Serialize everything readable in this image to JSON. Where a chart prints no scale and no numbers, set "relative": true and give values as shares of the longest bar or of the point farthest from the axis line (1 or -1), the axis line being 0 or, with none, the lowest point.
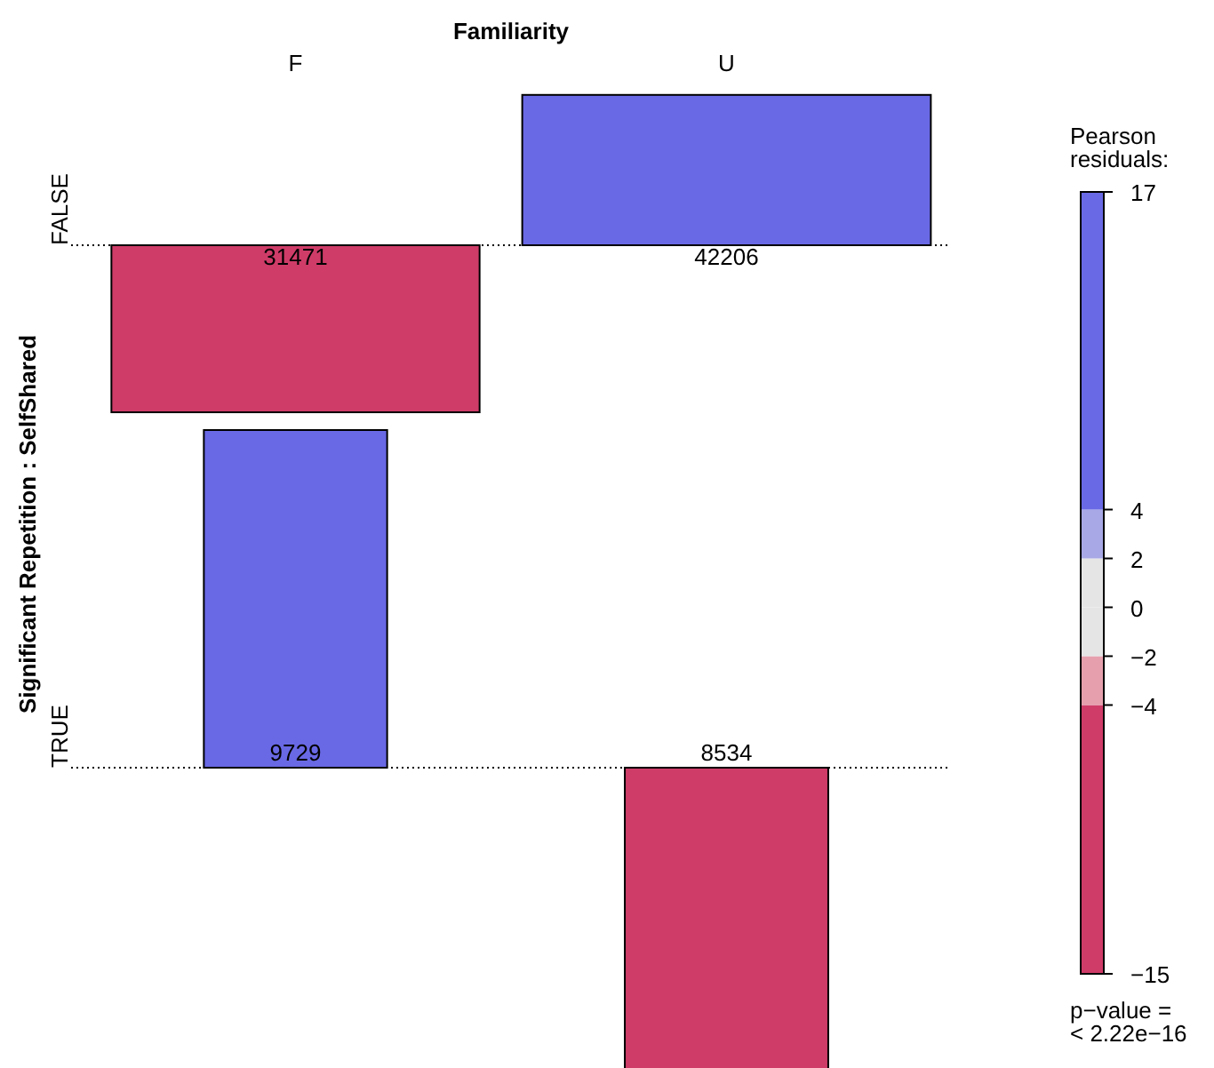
{
  "chart_data": [
    {
      "type": "bar",
      "relative": true,
      "title": "Familiarity",
      "ylabel": "FALSE",
      "categories": [
        "F",
        "U"
      ],
      "values": [
        -1,
        0.9
      ],
      "colors": [
        "#cf3c68",
        "#6969e5"
      ],
      "ref_lines": [
        {
          "axis": "y",
          "value": 0,
          "line_style": "dotted"
        }
      ],
      "clabel": "Pearson residuals:",
      "clim": [
        -15,
        17
      ],
      "cticks": [
        {
          "value": -15,
          "label": "−15"
        },
        {
          "value": -4,
          "label": "−4"
        },
        {
          "value": -2,
          "label": "−2"
        },
        0,
        2,
        4,
        17
      ],
      "annotations": [
        "Significant Repetition : SelfShared",
        "p−value =\n< 2.22e−16",
        {
          "text": "31471",
          "x": "F",
          "y": 0
        },
        {
          "text": "42206",
          "x": "U",
          "y": 0
        }
      ]
    },
    {
      "type": "bar",
      "relative": true,
      "ylabel": "TRUE",
      "tick_labels": false,
      "categories": [
        "F",
        "U"
      ],
      "values": [
        1,
        -0.9
      ],
      "colors": [
        "#6969e5",
        "#cf3c68"
      ],
      "ref_lines": [
        {
          "axis": "y",
          "value": 0,
          "line_style": "dotted"
        }
      ],
      "annotations": [
        {
          "text": "9729",
          "x": "F",
          "y": 0
        },
        {
          "text": "8534",
          "x": "U",
          "y": 0
        }
      ]
    }
  ]
}
